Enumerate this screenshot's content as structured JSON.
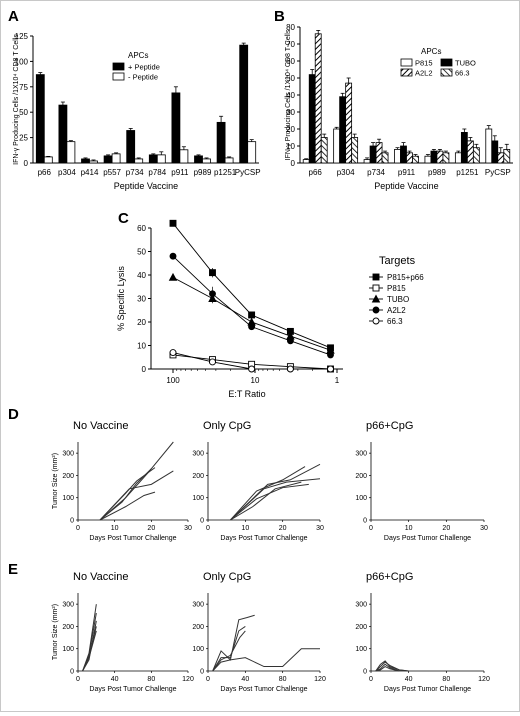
{
  "figure": {
    "panel_letters": [
      "A",
      "B",
      "C",
      "D",
      "E"
    ]
  },
  "chart_data": [
    {
      "panel": "A",
      "type": "bar",
      "title": "",
      "xlabel": "Peptide Vaccine",
      "ylabel": "IFN-γ Producing Cells /1X10⁴ CD8 T Cells",
      "ylim": [
        0,
        125
      ],
      "yticks": [
        0,
        25,
        50,
        75,
        100,
        125
      ],
      "legend": {
        "title": "APCs",
        "position": "top-center"
      },
      "categories": [
        "p66",
        "p304",
        "p414",
        "p557",
        "p734",
        "p784",
        "p911",
        "p989",
        "p1251",
        "PyCSP"
      ],
      "series": [
        {
          "name": "+ Peptide",
          "fill": "#000000",
          "values": [
            87,
            57,
            4,
            7,
            32,
            8,
            69,
            7,
            40,
            116
          ],
          "errors": [
            2,
            3,
            1,
            1,
            2,
            1,
            6,
            1,
            6,
            2
          ]
        },
        {
          "name": "- Peptide",
          "fill": "#ffffff",
          "values": [
            6,
            21,
            2,
            9,
            4,
            8,
            13,
            4,
            5,
            21
          ],
          "errors": [
            0.5,
            1,
            1,
            1,
            1,
            3,
            3,
            1,
            1,
            2
          ]
        }
      ]
    },
    {
      "panel": "B",
      "type": "bar",
      "title": "",
      "xlabel": "Peptide Vaccine",
      "ylabel": "IFN-γ Producing Cells /1X10⁴ CD8 T Cells",
      "ylim": [
        0,
        80
      ],
      "yticks": [
        0,
        10,
        20,
        30,
        40,
        50,
        60,
        70,
        80
      ],
      "legend": {
        "title": "APCs",
        "position": "top-right"
      },
      "categories": [
        "p66",
        "p304",
        "p734",
        "p911",
        "p989",
        "p1251",
        "PyCSP"
      ],
      "series": [
        {
          "name": "P815",
          "fill": "white",
          "values": [
            2,
            20,
            2,
            8,
            4,
            6,
            20
          ],
          "errors": [
            0.5,
            1,
            1,
            1,
            1,
            1,
            2
          ]
        },
        {
          "name": "TUBO",
          "fill": "black",
          "values": [
            52,
            39,
            10,
            10,
            7,
            18,
            13
          ],
          "errors": [
            3,
            2,
            2,
            2,
            1,
            2,
            3
          ]
        },
        {
          "name": "A2L2",
          "fill": "hatch",
          "values": [
            76,
            47,
            12,
            6,
            7,
            13,
            6
          ],
          "errors": [
            2,
            3,
            2,
            1,
            1,
            2,
            3
          ]
        },
        {
          "name": "66.3",
          "fill": "crosshatch",
          "values": [
            15,
            15,
            6,
            4,
            6,
            9,
            8
          ],
          "errors": [
            2,
            2,
            1,
            1,
            1,
            2,
            3
          ]
        }
      ]
    },
    {
      "panel": "C",
      "type": "line",
      "title": "",
      "xlabel": "E:T Ratio",
      "ylabel": "% Specific Lysis",
      "x_scale": "log",
      "x_reversed": true,
      "xlim": [
        100,
        1
      ],
      "xticks": [
        100,
        10,
        1
      ],
      "ylim": [
        0,
        60
      ],
      "yticks": [
        0,
        10,
        20,
        30,
        40,
        50,
        60
      ],
      "legend": {
        "title": "Targets",
        "position": "right"
      },
      "x": [
        100,
        33,
        11,
        3.7,
        1.2
      ],
      "series": [
        {
          "name": "P815+p66",
          "marker": "square-filled",
          "values": [
            62,
            41,
            23,
            16,
            9
          ],
          "errors": [
            1,
            2,
            1,
            1,
            1
          ]
        },
        {
          "name": "P815",
          "marker": "square-open",
          "values": [
            6,
            4,
            2,
            1,
            0
          ],
          "errors": [
            0.5,
            0.5,
            0.5,
            0.5,
            0.5
          ]
        },
        {
          "name": "TUBO",
          "marker": "triangle-filled",
          "values": [
            39,
            30,
            20,
            14,
            8
          ],
          "errors": [
            1,
            2,
            1,
            1,
            1
          ]
        },
        {
          "name": "A2L2",
          "marker": "circle-filled",
          "values": [
            48,
            32,
            18,
            12,
            6
          ],
          "errors": [
            1,
            3,
            1,
            1,
            1
          ]
        },
        {
          "name": "66.3",
          "marker": "circle-open",
          "values": [
            7,
            3,
            0,
            0,
            0
          ],
          "errors": [
            0.5,
            0.5,
            0.5,
            0.5,
            0.5
          ]
        }
      ]
    },
    {
      "panel": "D",
      "type": "line",
      "xlabel": "Days Post Tumor Challenge",
      "ylabel": "Tumor Size (mm²)",
      "xlim": [
        0,
        30
      ],
      "xticks": [
        0,
        10,
        20,
        30
      ],
      "ylim": [
        0,
        350
      ],
      "yticks": [
        0,
        100,
        200,
        300
      ],
      "groups": [
        {
          "title": "No Vaccine",
          "series": [
            {
              "x": [
                6,
                13,
                19,
                26
              ],
              "values": [
                0,
                100,
                210,
                350
              ]
            },
            {
              "x": [
                6,
                14,
                20,
                26
              ],
              "values": [
                0,
                140,
                160,
                220
              ]
            },
            {
              "x": [
                6,
                13,
                16,
                21
              ],
              "values": [
                0,
                120,
                175,
                235
              ]
            },
            {
              "x": [
                6,
                12,
                16,
                20
              ],
              "values": [
                0,
                80,
                165,
                230
              ]
            },
            {
              "x": [
                6,
                13,
                18,
                21
              ],
              "values": [
                0,
                60,
                110,
                125
              ]
            }
          ]
        },
        {
          "title": "Only CpG",
          "series": [
            {
              "x": [
                6,
                13,
                20,
                26
              ],
              "values": [
                0,
                130,
                180,
                240
              ]
            },
            {
              "x": [
                6,
                13,
                20,
                27
              ],
              "values": [
                0,
                95,
                145,
                160
              ]
            },
            {
              "x": [
                6,
                16,
                22,
                30
              ],
              "values": [
                0,
                160,
                180,
                250
              ]
            },
            {
              "x": [
                6,
                12,
                18,
                25
              ],
              "values": [
                0,
                60,
                140,
                170
              ]
            },
            {
              "x": [
                6,
                15,
                21,
                30
              ],
              "values": [
                0,
                140,
                170,
                185
              ]
            }
          ]
        },
        {
          "title": "p66+CpG",
          "series": []
        }
      ]
    },
    {
      "panel": "E",
      "type": "line",
      "xlabel": "Days Post Tumor Challenge",
      "ylabel": "Tumor Size (mm²)",
      "xlim": [
        0,
        120
      ],
      "xticks": [
        0,
        40,
        80,
        120
      ],
      "ylim": [
        0,
        350
      ],
      "yticks": [
        0,
        100,
        200,
        300
      ],
      "groups": [
        {
          "title": "No Vaccine",
          "series": [
            {
              "x": [
                5,
                12,
                20
              ],
              "values": [
                0,
                80,
                300
              ]
            },
            {
              "x": [
                5,
                12,
                20
              ],
              "values": [
                0,
                70,
                260
              ]
            },
            {
              "x": [
                5,
                12,
                20
              ],
              "values": [
                0,
                65,
                200
              ]
            },
            {
              "x": [
                5,
                12,
                20
              ],
              "values": [
                0,
                60,
                180
              ]
            },
            {
              "x": [
                5,
                12,
                20
              ],
              "values": [
                0,
                50,
                225
              ]
            }
          ]
        },
        {
          "title": "Only CpG",
          "series": [
            {
              "x": [
                5,
                14,
                24,
                33,
                42,
                50
              ],
              "values": [
                0,
                90,
                50,
                230,
                240,
                250
              ]
            },
            {
              "x": [
                5,
                14,
                24,
                33,
                40
              ],
              "values": [
                0,
                60,
                60,
                180,
                200
              ]
            },
            {
              "x": [
                5,
                14,
                24,
                34,
                40
              ],
              "values": [
                0,
                50,
                70,
                150,
                180
              ]
            },
            {
              "x": [
                5,
                14,
                24,
                40,
                60,
                80,
                100,
                120
              ],
              "values": [
                0,
                40,
                50,
                60,
                20,
                20,
                100,
                100
              ]
            }
          ]
        },
        {
          "title": "p66+CpG",
          "series": [
            {
              "x": [
                5,
                10,
                15,
                20,
                30,
                40
              ],
              "values": [
                0,
                30,
                45,
                20,
                5,
                0
              ]
            },
            {
              "x": [
                5,
                10,
                15,
                20,
                30,
                40
              ],
              "values": [
                0,
                20,
                40,
                25,
                5,
                0
              ]
            },
            {
              "x": [
                5,
                10,
                15,
                20,
                30
              ],
              "values": [
                0,
                10,
                30,
                15,
                0
              ]
            },
            {
              "x": [
                5,
                10,
                15,
                20,
                30
              ],
              "values": [
                0,
                5,
                20,
                10,
                0
              ]
            }
          ]
        }
      ]
    }
  ]
}
